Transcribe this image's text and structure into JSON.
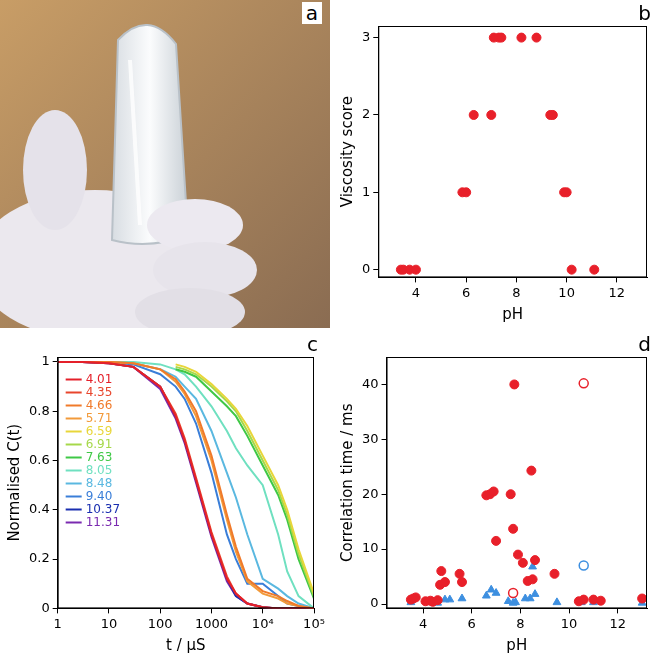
{
  "chart_data": [
    {
      "type": "image",
      "panel_label": "a"
    },
    {
      "type": "scatter",
      "panel_label": "b",
      "x_label": "pH",
      "y_label": "Viscosity score",
      "xlim": [
        2.5,
        13.2
      ],
      "xticks": [
        4,
        6,
        8,
        10,
        12
      ],
      "ylim": [
        -0.1,
        3.15
      ],
      "yticks": [
        0,
        1,
        2,
        3
      ],
      "grid": false,
      "series": [
        {
          "color": "#e8202a",
          "marker": "circle",
          "x": [
            3.4,
            3.5,
            3.75,
            4.0,
            5.85,
            6.0,
            6.3,
            7.0,
            7.1,
            7.3,
            7.4,
            8.2,
            8.8,
            9.35,
            9.45,
            9.9,
            10.0,
            10.2,
            11.1
          ],
          "values": [
            0,
            0,
            0,
            0,
            1,
            1,
            2,
            2,
            3,
            3,
            3,
            3,
            3,
            2,
            2,
            1,
            1,
            0,
            0
          ]
        }
      ]
    },
    {
      "type": "line",
      "panel_label": "c",
      "x_label": "t / µS",
      "y_label": "Normalised C(t)",
      "log": "x",
      "x": [
        1,
        3,
        10,
        30,
        100,
        200,
        300,
        500,
        1000,
        2000,
        3000,
        5000,
        10000,
        20000,
        30000,
        50000,
        100000
      ],
      "xlim": [
        1,
        100000
      ],
      "xticks": [
        1,
        10,
        100,
        1000,
        {
          "value": 10000,
          "label": "10⁴"
        },
        {
          "value": 100000,
          "label": "10⁵"
        }
      ],
      "ylim": [
        0,
        1.02
      ],
      "yticks": [
        0,
        0.2,
        0.4,
        0.6,
        0.8,
        1
      ],
      "grid": false,
      "legend": "upper left",
      "series": [
        {
          "name": "4.01",
          "color": "#e4202a",
          "values": [
            1,
            1,
            0.995,
            0.98,
            0.9,
            0.78,
            0.68,
            0.52,
            0.3,
            0.12,
            0.06,
            0.02,
            0.005,
            0,
            0,
            0,
            0
          ]
        },
        {
          "name": "4.35",
          "color": "#e8452c",
          "values": [
            1,
            1,
            0.995,
            0.98,
            0.9,
            0.79,
            0.69,
            0.53,
            0.31,
            0.13,
            0.06,
            0.02,
            0.005,
            0,
            0,
            0,
            0
          ]
        },
        {
          "name": "4.66",
          "color": "#f07a2a",
          "values": [
            1,
            1,
            1,
            0.995,
            0.97,
            0.93,
            0.88,
            0.8,
            0.62,
            0.38,
            0.25,
            0.12,
            0.07,
            0.05,
            0.03,
            0.01,
            0
          ]
        },
        {
          "name": "5.71",
          "color": "#f29a3a",
          "values": [
            1,
            1,
            1,
            0.995,
            0.97,
            0.92,
            0.87,
            0.78,
            0.6,
            0.36,
            0.23,
            0.11,
            0.06,
            0.04,
            0.02,
            0.01,
            0
          ]
        },
        {
          "name": "6.59",
          "color": "#e8d63a",
          "values": [
            null,
            null,
            null,
            null,
            null,
            0.99,
            0.98,
            0.96,
            0.91,
            0.85,
            0.81,
            0.74,
            0.62,
            0.5,
            0.4,
            0.24,
            0.06
          ]
        },
        {
          "name": "6.91",
          "color": "#a6d84a",
          "values": [
            null,
            null,
            null,
            null,
            null,
            0.98,
            0.97,
            0.95,
            0.9,
            0.84,
            0.8,
            0.72,
            0.6,
            0.48,
            0.38,
            0.22,
            0.05
          ]
        },
        {
          "name": "7.63",
          "color": "#3fc846",
          "values": [
            null,
            null,
            null,
            null,
            null,
            0.97,
            0.96,
            0.94,
            0.88,
            0.82,
            0.78,
            0.7,
            0.58,
            0.46,
            0.36,
            0.2,
            0.04
          ]
        },
        {
          "name": "8.05",
          "color": "#6fe0c0",
          "values": [
            1,
            1,
            1,
            1,
            0.99,
            0.97,
            0.95,
            0.9,
            0.82,
            0.72,
            0.65,
            0.58,
            0.5,
            0.3,
            0.15,
            0.05,
            0
          ]
        },
        {
          "name": "8.48",
          "color": "#5ab8e0",
          "values": [
            1,
            1,
            1,
            0.995,
            0.97,
            0.94,
            0.9,
            0.85,
            0.72,
            0.55,
            0.45,
            0.3,
            0.12,
            0.08,
            0.05,
            0.02,
            0
          ]
        },
        {
          "name": "9.40",
          "color": "#3a7ed8",
          "values": [
            1,
            1,
            1,
            0.99,
            0.95,
            0.9,
            0.85,
            0.75,
            0.55,
            0.3,
            0.2,
            0.1,
            0.1,
            0.05,
            0.02,
            0.01,
            0
          ]
        },
        {
          "name": "10.37",
          "color": "#1a2fb0",
          "values": [
            1,
            1,
            0.995,
            0.98,
            0.9,
            0.78,
            0.68,
            0.52,
            0.3,
            0.12,
            0.05,
            0.02,
            0.005,
            0,
            0,
            0,
            0
          ]
        },
        {
          "name": "11.31",
          "color": "#7a2ab0",
          "values": [
            1,
            1,
            0.995,
            0.98,
            0.89,
            0.77,
            0.67,
            0.51,
            0.29,
            0.11,
            0.05,
            0.02,
            0.005,
            0,
            0,
            0,
            0
          ]
        }
      ]
    },
    {
      "type": "scatter",
      "panel_label": "d",
      "x_label": "pH",
      "y_label": "Correlation time / ms",
      "xlim": [
        2.5,
        13.2
      ],
      "xticks": [
        4,
        6,
        8,
        10,
        12
      ],
      "ylim": [
        -0.8,
        45
      ],
      "yticks": [
        0,
        10,
        20,
        30,
        40
      ],
      "grid": false,
      "series": [
        {
          "color": "#e8202a",
          "marker": "circle",
          "x": [
            3.5,
            3.6,
            3.7,
            4.1,
            4.3,
            4.4,
            4.6,
            4.7,
            4.75,
            4.9,
            5.5,
            5.6,
            6.6,
            6.75,
            6.9,
            7.0,
            7.6,
            7.7,
            7.75,
            7.9,
            8.1,
            8.3,
            8.45,
            8.5,
            8.6,
            9.4,
            10.4,
            10.6,
            11.0,
            11.3,
            13.0
          ],
          "values": [
            0.8,
            1.0,
            1.2,
            0.5,
            0.6,
            0.4,
            0.7,
            3.5,
            6,
            4,
            5.5,
            4,
            19.8,
            20,
            20.5,
            11.5,
            20,
            13.7,
            40,
            9,
            7.5,
            4.2,
            24.3,
            4.5,
            8,
            5.5,
            0.5,
            0.8,
            0.8,
            0.6,
            1.0
          ]
        },
        {
          "color": "#3d8fe0",
          "marker": "triangle",
          "x": [
            3.5,
            4.2,
            4.6,
            4.9,
            5.1,
            5.6,
            6.6,
            6.8,
            7.0,
            7.5,
            7.7,
            7.8,
            8.2,
            8.4,
            8.5,
            8.6,
            9.5,
            10.5,
            11.0,
            13.0
          ],
          "values": [
            0.3,
            0.3,
            0.2,
            0.8,
            0.8,
            1.0,
            1.5,
            2.6,
            2.0,
            0.5,
            0.2,
            0.3,
            1.0,
            1.0,
            6.8,
            1.8,
            0.3,
            0.3,
            0.3,
            0.2
          ]
        },
        {
          "color": "#e8202a",
          "marker": "open_circle",
          "x": [
            7.7,
            10.6
          ],
          "values": [
            2.0,
            40.2
          ]
        },
        {
          "color": "#3d8fe0",
          "marker": "open_circle",
          "x": [
            10.6
          ],
          "values": [
            7.0
          ]
        }
      ]
    }
  ]
}
